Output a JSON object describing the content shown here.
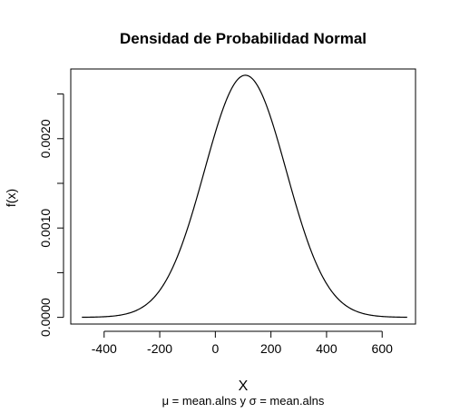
{
  "chart_data": {
    "type": "line",
    "title": "Densidad de Probabilidad Normal",
    "subtitle": "μ = mean.alns y σ = mean.alns",
    "xlabel": "X",
    "ylabel": "f(x)",
    "x_ticks": [
      "-400",
      "-200",
      "0",
      "200",
      "400",
      "600"
    ],
    "y_ticks": [
      "0.0000",
      "0.0010",
      "0.0020"
    ],
    "xlim": [
      -520,
      720
    ],
    "ylim": [
      -7.5e-05,
      0.00278
    ],
    "x_tick_values": [
      -400,
      -200,
      0,
      200,
      400,
      600
    ],
    "y_tick_values": [
      0,
      0.001,
      0.002
    ],
    "y_minor_ticks": [
      0.0005,
      0.0015,
      0.0025
    ],
    "series": [
      {
        "mean": 108,
        "sd": 147,
        "x_range": [
          -480,
          690
        ],
        "peak": 0.00271
      }
    ],
    "grid": false,
    "legend": "none"
  }
}
